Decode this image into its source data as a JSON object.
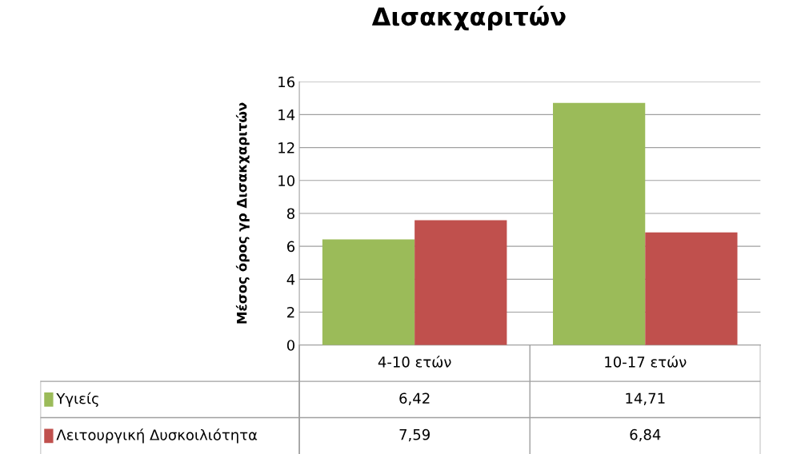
{
  "chart_data": {
    "type": "bar",
    "title": "Δισακχαριτών",
    "ylabel": "Μέσος όρος γρ Δισακχαριτών",
    "categories": [
      "4-10 ετών",
      "10-17 ετών"
    ],
    "series": [
      {
        "name": "Υγιείς",
        "color": "#9bbb59",
        "values": [
          6.42,
          14.71
        ],
        "value_labels": [
          "6,42",
          "14,71"
        ]
      },
      {
        "name": "Λειτουργική Δυσκοιλιότητα",
        "color": "#c0504d",
        "values": [
          7.59,
          6.84
        ],
        "value_labels": [
          "7,59",
          "6,84"
        ]
      }
    ],
    "ylim": [
      0,
      16
    ],
    "yticks": [
      0,
      2,
      4,
      6,
      8,
      10,
      12,
      14,
      16
    ],
    "grid": "y",
    "legend": "bottom"
  }
}
